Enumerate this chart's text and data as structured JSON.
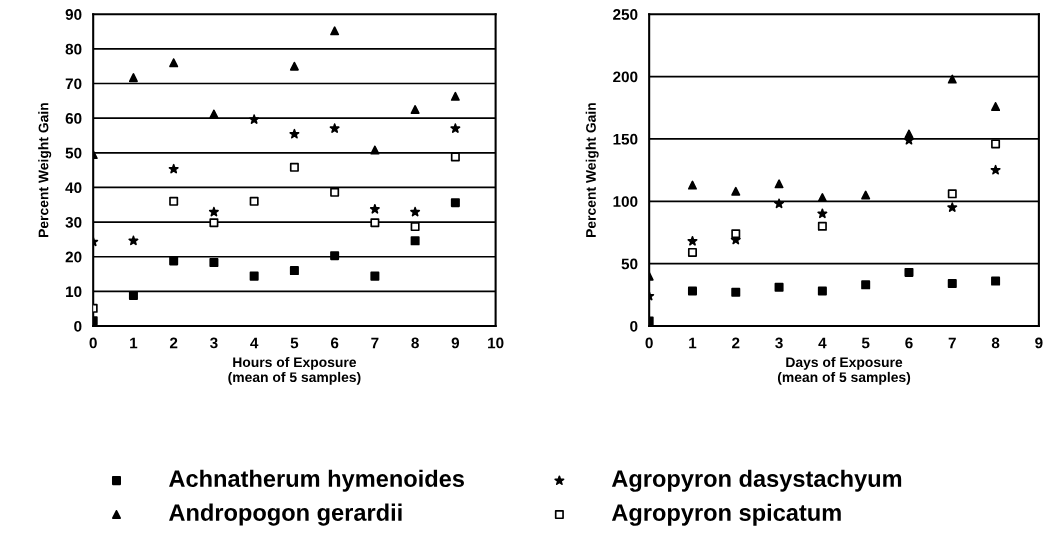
{
  "chart_data": [
    {
      "type": "scatter",
      "xlabel": "Hours of Exposure\n(mean of 5 samples)",
      "ylabel": "Percent Weight Gain",
      "x": [
        0,
        1,
        2,
        3,
        4,
        5,
        6,
        7,
        8,
        9
      ],
      "xlim": [
        0,
        10
      ],
      "xticks": [
        0,
        1,
        2,
        3,
        4,
        5,
        6,
        7,
        8,
        9,
        10
      ],
      "ylim": [
        0,
        90
      ],
      "yticks": [
        0,
        10,
        20,
        30,
        40,
        50,
        60,
        70,
        80,
        90
      ],
      "grid": "y",
      "legend": "bottom",
      "series": [
        {
          "name": "Achnatherum hymenoides",
          "color": "#000000",
          "marker": "square",
          "values": [
            1.5,
            8.8,
            18.8,
            18.3,
            14.4,
            16,
            20.3,
            14.4,
            24.6,
            35.6
          ]
        },
        {
          "name": "Andropogon gerardii",
          "color": "#000000",
          "marker": "triangle",
          "values": [
            49.5,
            71.7,
            76,
            61.2,
            null,
            75,
            85.2,
            50.8,
            62.5,
            66.3
          ]
        },
        {
          "name": "Agropyron dasystachyum",
          "color": "#000000",
          "marker": "star",
          "values": [
            24.3,
            24.6,
            45.3,
            32.9,
            59.6,
            55.4,
            57,
            33.7,
            32.9,
            57
          ]
        },
        {
          "name": "Agropyron spicatum",
          "color": "#ffffff",
          "marker": "square",
          "values": [
            5.1,
            null,
            36,
            29.8,
            36,
            45.8,
            38.6,
            29.8,
            28.7,
            48.8
          ]
        }
      ]
    },
    {
      "type": "scatter",
      "xlabel": "Days of Exposure\n(mean of 5 samples)",
      "ylabel": "Percent Weight Gain",
      "x": [
        0,
        1,
        2,
        3,
        4,
        5,
        6,
        7,
        8
      ],
      "xlim": [
        0,
        9
      ],
      "xticks": [
        0,
        1,
        2,
        3,
        4,
        5,
        6,
        7,
        8,
        9
      ],
      "ylim": [
        0,
        250
      ],
      "yticks": [
        0,
        50,
        100,
        150,
        200,
        250
      ],
      "grid": "y",
      "legend": "bottom",
      "series": [
        {
          "name": "Achnatherum hymenoides",
          "color": "#000000",
          "marker": "square",
          "values": [
            4,
            28,
            27,
            31,
            28,
            33,
            43,
            34,
            36
          ]
        },
        {
          "name": "Andropogon gerardii",
          "color": "#000000",
          "marker": "triangle",
          "values": [
            40,
            113,
            108,
            114,
            103,
            105,
            154,
            198,
            176
          ]
        },
        {
          "name": "Agropyron dasystachyum",
          "color": "#000000",
          "marker": "star",
          "values": [
            24,
            68,
            69,
            98,
            90,
            null,
            149,
            95,
            125
          ]
        },
        {
          "name": "Agropyron spicatum",
          "color": "#ffffff",
          "marker": "square",
          "values": [
            null,
            59,
            74,
            null,
            80,
            null,
            null,
            106,
            146
          ]
        }
      ]
    }
  ]
}
